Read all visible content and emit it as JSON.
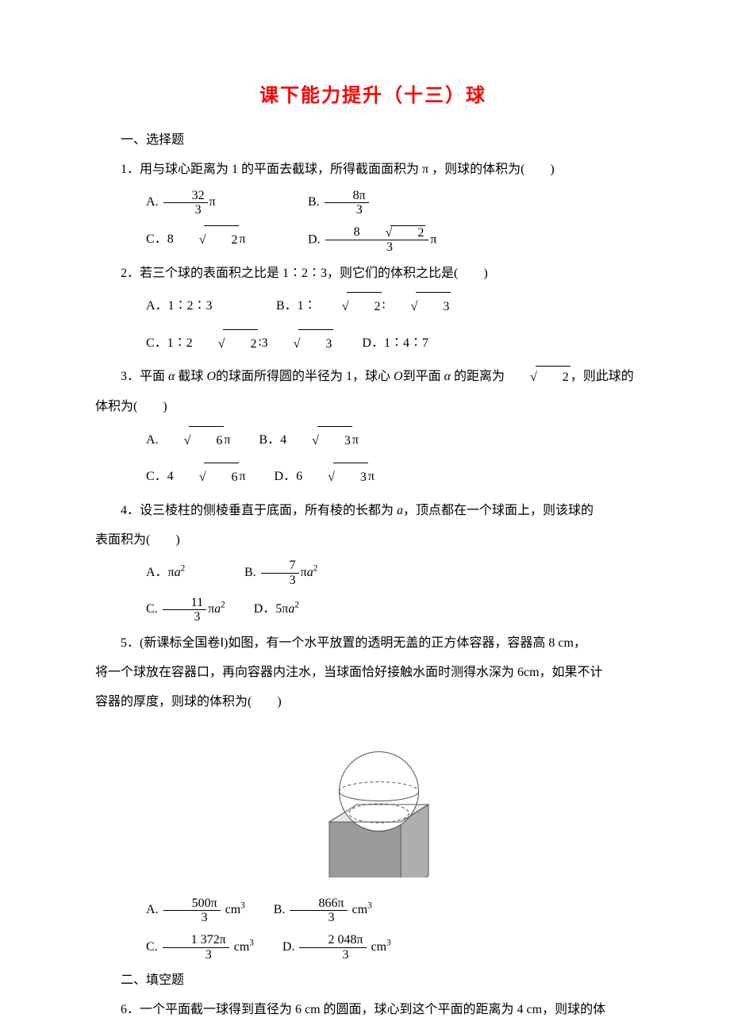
{
  "title_color": "#ff0000",
  "title_fontsize": 24,
  "body_fontsize": 16,
  "title": "课下能力提升（十三）球",
  "section1": "一、选择题",
  "q1": {
    "stem": "1．用与球心距离为 1 的平面去截球，所得截面面积为 π ，则球的体积为(　　)",
    "A": "A.",
    "B": "B.",
    "C": "C．",
    "D": "D.",
    "A_frac_num": "32",
    "A_frac_den": "3",
    "A_tail": "π",
    "B_frac_num": "8π",
    "B_frac_den": "3",
    "C_pre": "8",
    "C_rad": "2",
    "C_tail": "π",
    "D_frac_num_pre": "8",
    "D_frac_num_rad": "2",
    "D_frac_den": "3",
    "D_tail": "π"
  },
  "q2": {
    "stem": "2．若三个球的表面积之比是 1∶2∶3，则它们的体积之比是(　　)",
    "A": "A．1∶2∶3",
    "B_pre": "B．1∶",
    "B_rad1": "2",
    "B_mid": "∶",
    "B_rad2": "3",
    "C_pre": "C．1∶2",
    "C_rad1": "2",
    "C_mid": "∶3",
    "C_rad2": "3",
    "D": "D．1∶4∶7"
  },
  "q3": {
    "stem_pre": "3．平面 ",
    "stem_mid1": " 截球 ",
    "stem_mid2": "的球面所得圆的半径为 1，球心 ",
    "stem_mid3": "到平面 ",
    "stem_mid4": " 的距离为",
    "stem_rad": "2",
    "stem_tail": "，则此球的",
    "line2": "体积为(　　)",
    "alpha": "α",
    "O": "O",
    "A_pre": "A.",
    "A_rad": "6",
    "A_tail": "π",
    "B_pre": "B．4",
    "B_rad": "3",
    "B_tail": "π",
    "C_pre": "C．4",
    "C_rad": "6",
    "C_tail": "π",
    "D_pre": "D．6",
    "D_rad": "3",
    "D_tail": "π"
  },
  "q4": {
    "stem_pre": "4．设三棱柱的侧棱垂直于底面，所有棱的长都为 ",
    "a": "a",
    "stem_tail": "，顶点都在一个球面上，则该球的",
    "line2": "表面积为(　　)",
    "A_pre": "A．π",
    "A_tail": "a",
    "A_sup": "2",
    "B_pre": "B.",
    "B_num": "7",
    "B_den": "3",
    "B_mid": "π",
    "B_tail": "a",
    "B_sup": "2",
    "C_pre": "C.",
    "C_num": "11",
    "C_den": "3",
    "C_mid": "π",
    "C_tail": "a",
    "C_sup": "2",
    "D_pre": "D．5π",
    "D_tail": "a",
    "D_sup": "2"
  },
  "q5": {
    "line1": "5．(新课标全国卷Ⅰ)如图，有一个水平放置的透明无盖的正方体容器，容器高 8 cm，",
    "line2": "将一个球放在容器口，再向容器内注水，当球面恰好接触水面时测得水深为 6cm，如果不计",
    "line3": "容器的厚度，则球的体积为(　　)",
    "A_pre": "A.",
    "A_num": "500π",
    "A_den": "3",
    "A_tail": " cm",
    "A_sup": "3",
    "B_pre": "B.",
    "B_num": "866π",
    "B_den": "3",
    "B_tail": " cm",
    "B_sup": "3",
    "C_pre": "C.",
    "C_num": "1 372π",
    "C_den": "3",
    "C_tail": " cm",
    "C_sup": "3",
    "D_pre": "D.",
    "D_num": "2 048π",
    "D_den": "3",
    "D_tail": " cm",
    "D_sup": "3"
  },
  "section2": "二、填空题",
  "q6": {
    "stem": "6．一个平面截一球得到直径为 6 cm 的圆面，球心到这个平面的距离为 4 cm，则球的体"
  },
  "figure": {
    "stroke": "#555555",
    "fill_top": "#e8e8e8",
    "fill_side": "#aeaeae",
    "fill_front": "#9a9a9a",
    "sphere_fill": "#ffffff",
    "dash": "4,3"
  }
}
